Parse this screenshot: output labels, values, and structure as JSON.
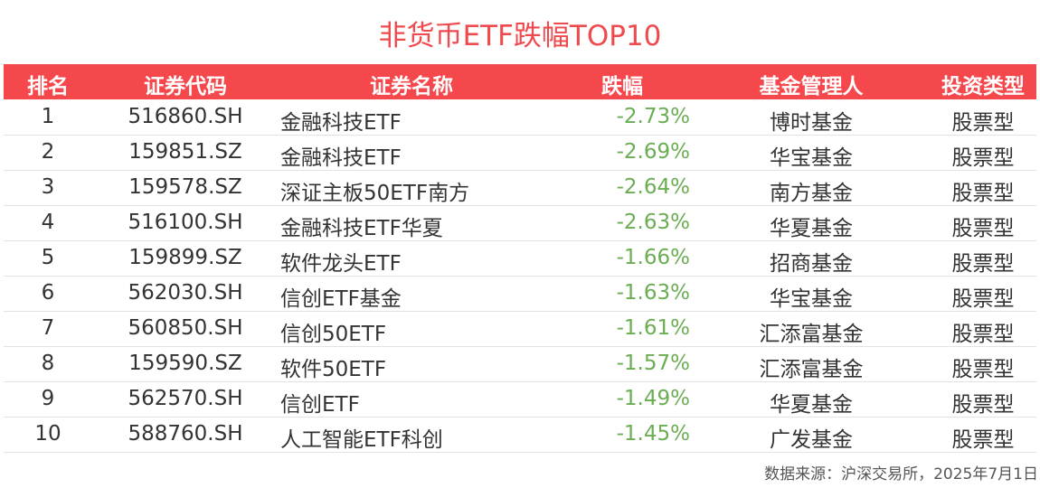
{
  "title": "非货币ETF跌幅TOP10",
  "table": {
    "headers": [
      "排名",
      "证券代码",
      "证券名称",
      "跌幅",
      "基金管理人",
      "投资类型"
    ],
    "rows": [
      [
        "1",
        "516860.SH",
        "金融科技ETF",
        "-2.73%",
        "博时基金",
        "股票型"
      ],
      [
        "2",
        "159851.SZ",
        "金融科技ETF",
        "-2.69%",
        "华宝基金",
        "股票型"
      ],
      [
        "3",
        "159578.SZ",
        "深证主板50ETF南方",
        "-2.64%",
        "南方基金",
        "股票型"
      ],
      [
        "4",
        "516100.SH",
        "金融科技ETF华夏",
        "-2.63%",
        "华夏基金",
        "股票型"
      ],
      [
        "5",
        "159899.SZ",
        "软件龙头ETF",
        "-1.66%",
        "招商基金",
        "股票型"
      ],
      [
        "6",
        "562030.SH",
        "信创ETF基金",
        "-1.63%",
        "华宝基金",
        "股票型"
      ],
      [
        "7",
        "560850.SH",
        "信创50ETF",
        "-1.61%",
        "汇添富基金",
        "股票型"
      ],
      [
        "8",
        "159590.SZ",
        "软件50ETF",
        "-1.57%",
        "汇添富基金",
        "股票型"
      ],
      [
        "9",
        "562570.SH",
        "信创ETF",
        "-1.49%",
        "华夏基金",
        "股票型"
      ],
      [
        "10",
        "588760.SH",
        "人工智能ETF科创",
        "-1.45%",
        "广发基金",
        "股票型"
      ]
    ]
  },
  "source": "数据来源：沪深交易所，2025年7月1日"
}
